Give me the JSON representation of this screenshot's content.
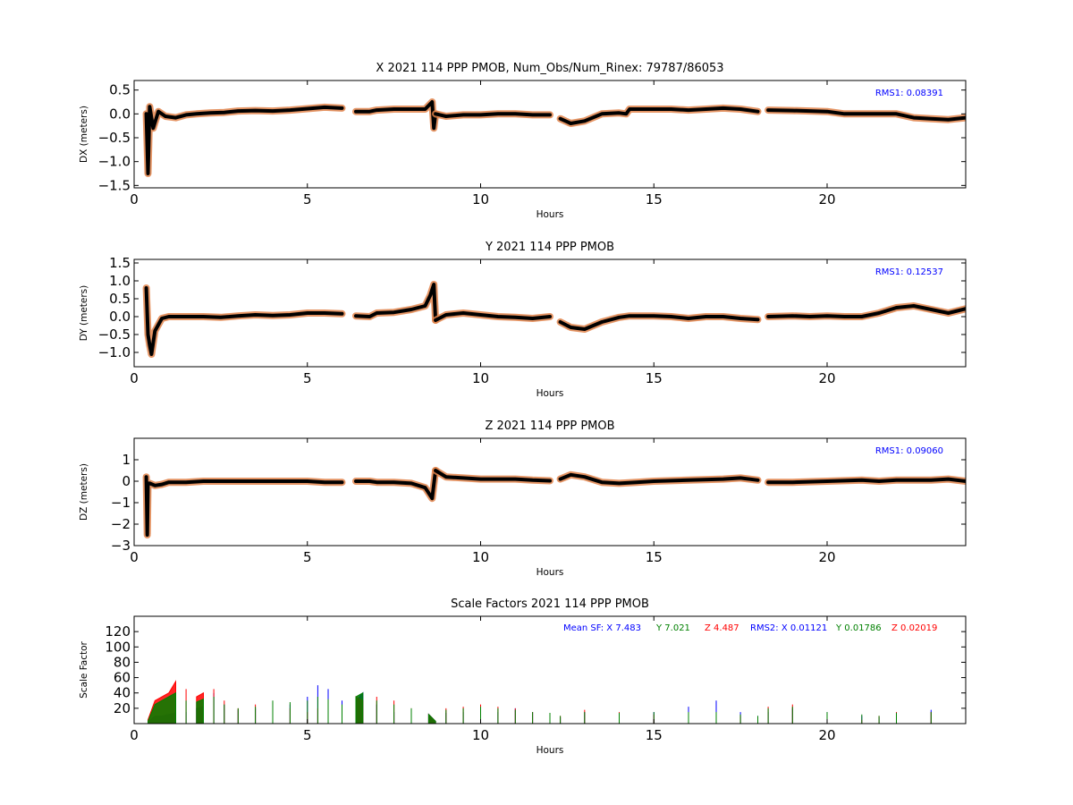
{
  "colors": {
    "data": "#000000",
    "band": "#e0824a",
    "rms": "#0000ff",
    "sfx": "#0000ff",
    "sfy": "#008000",
    "sfz": "#ff0000"
  },
  "chart_data": [
    {
      "type": "scatter",
      "title": "X 2021 114 PPP  PMOB, Num_Obs/Num_Rinex: 79787/86053",
      "xlabel": "Hours",
      "ylabel": "DX (meters)",
      "xlim": [
        0,
        24
      ],
      "ylim": [
        -1.55,
        0.7
      ],
      "xticks": [
        0,
        5,
        10,
        15,
        20
      ],
      "xtick_labels": [
        "0",
        "5",
        "10",
        "15",
        "20"
      ],
      "yticks": [
        -1.5,
        -1.0,
        -0.5,
        0.0,
        0.5
      ],
      "ytick_labels": [
        "−1.5",
        "−1.0",
        "−0.5",
        "0.0",
        "0.5"
      ],
      "annotation": "RMS1:  0.08391",
      "annotation_position": "top-right",
      "segments": [
        {
          "x": [
            0.35,
            0.4,
            0.45,
            0.55,
            0.7,
            0.9,
            1.2,
            1.5,
            1.8,
            2.2,
            2.6,
            3.0,
            3.5,
            4.0,
            4.5,
            5.0,
            5.5,
            6.0
          ],
          "y": [
            0.0,
            -1.25,
            0.15,
            -0.3,
            0.05,
            -0.05,
            -0.08,
            -0.02,
            0.0,
            0.02,
            0.03,
            0.06,
            0.07,
            0.06,
            0.08,
            0.11,
            0.14,
            0.12
          ]
        },
        {
          "x": [
            6.4,
            6.8,
            7.0,
            7.5,
            8.0,
            8.4,
            8.6,
            8.65,
            8.7
          ],
          "y": [
            0.05,
            0.05,
            0.08,
            0.1,
            0.1,
            0.1,
            0.25,
            -0.3,
            0.0
          ]
        },
        {
          "x": [
            8.7,
            9.0,
            9.5,
            10.0,
            10.5,
            11.0,
            11.5,
            12.0
          ],
          "y": [
            0.0,
            -0.05,
            -0.02,
            -0.02,
            0.0,
            0.0,
            -0.02,
            -0.02
          ]
        },
        {
          "x": [
            12.3,
            12.6,
            13.0,
            13.5,
            14.0,
            14.2,
            14.3,
            15.0,
            15.5,
            16.0,
            16.5,
            17.0,
            17.5,
            18.0
          ],
          "y": [
            -0.1,
            -0.2,
            -0.15,
            0.0,
            0.02,
            0.0,
            0.1,
            0.1,
            0.1,
            0.08,
            0.1,
            0.12,
            0.1,
            0.05
          ]
        },
        {
          "x": [
            18.3,
            19.0,
            19.5,
            20.0,
            20.5,
            21.0,
            21.5,
            22.0,
            22.5,
            23.0,
            23.5,
            24.0
          ],
          "y": [
            0.08,
            0.07,
            0.06,
            0.05,
            0.0,
            0.0,
            0.0,
            0.0,
            -0.08,
            -0.1,
            -0.12,
            -0.08
          ]
        }
      ]
    },
    {
      "type": "scatter",
      "title": "Y 2021 114 PPP  PMOB",
      "xlabel": "Hours",
      "ylabel": "DY (meters)",
      "xlim": [
        0,
        24
      ],
      "ylim": [
        -1.4,
        1.6
      ],
      "xticks": [
        0,
        5,
        10,
        15,
        20
      ],
      "xtick_labels": [
        "0",
        "5",
        "10",
        "15",
        "20"
      ],
      "yticks": [
        -1.0,
        -0.5,
        0.0,
        0.5,
        1.0,
        1.5
      ],
      "ytick_labels": [
        "−1.0",
        "−0.5",
        "0.0",
        "0.5",
        "1.0",
        "1.5"
      ],
      "annotation": "RMS1:  0.12537",
      "annotation_position": "top-right",
      "segments": [
        {
          "x": [
            0.35,
            0.4,
            0.45,
            0.5,
            0.6,
            0.8,
            1.0,
            1.5,
            2.0,
            2.5,
            3.0,
            3.5,
            4.0,
            4.5,
            5.0,
            5.5,
            6.0
          ],
          "y": [
            0.8,
            -0.5,
            -0.8,
            -1.05,
            -0.4,
            -0.05,
            0.0,
            0.0,
            0.0,
            -0.02,
            0.02,
            0.05,
            0.03,
            0.05,
            0.1,
            0.1,
            0.08
          ]
        },
        {
          "x": [
            6.4,
            6.8,
            7.0,
            7.5,
            8.0,
            8.4,
            8.55,
            8.65,
            8.7
          ],
          "y": [
            0.02,
            0.0,
            0.1,
            0.12,
            0.2,
            0.3,
            0.6,
            0.9,
            -0.1
          ]
        },
        {
          "x": [
            8.7,
            9.0,
            9.5,
            10.0,
            10.5,
            11.0,
            11.5,
            12.0
          ],
          "y": [
            -0.1,
            0.05,
            0.1,
            0.05,
            0.0,
            -0.02,
            -0.05,
            0.0
          ]
        },
        {
          "x": [
            12.3,
            12.6,
            13.0,
            13.5,
            14.0,
            14.3,
            15.0,
            15.5,
            16.0,
            16.5,
            17.0,
            17.5,
            18.0
          ],
          "y": [
            -0.15,
            -0.3,
            -0.35,
            -0.15,
            -0.02,
            0.02,
            0.02,
            0.0,
            -0.05,
            0.0,
            0.0,
            -0.05,
            -0.08
          ]
        },
        {
          "x": [
            18.3,
            19.0,
            19.5,
            20.0,
            20.5,
            21.0,
            21.5,
            22.0,
            22.5,
            23.0,
            23.5,
            24.0
          ],
          "y": [
            0.0,
            0.02,
            0.0,
            0.02,
            0.0,
            0.0,
            0.1,
            0.25,
            0.3,
            0.2,
            0.1,
            0.22
          ]
        }
      ]
    },
    {
      "type": "scatter",
      "title": "Z 2021 114 PPP  PMOB",
      "xlabel": "Hours",
      "ylabel": "DZ (meters)",
      "xlim": [
        0,
        24
      ],
      "ylim": [
        -3,
        2
      ],
      "xticks": [
        0,
        5,
        10,
        15,
        20
      ],
      "xtick_labels": [
        "0",
        "5",
        "10",
        "15",
        "20"
      ],
      "yticks": [
        -3,
        -2,
        -1,
        0,
        1
      ],
      "ytick_labels": [
        "−3",
        "−2",
        "−1",
        "0",
        "1"
      ],
      "annotation": "RMS1:  0.09060",
      "annotation_position": "top-right",
      "segments": [
        {
          "x": [
            0.35,
            0.38,
            0.4,
            0.45,
            0.6,
            0.8,
            1.0,
            1.5,
            2.0,
            3.0,
            4.0,
            5.0,
            5.5,
            6.0
          ],
          "y": [
            0.2,
            -2.5,
            -0.1,
            -0.1,
            -0.2,
            -0.15,
            -0.05,
            -0.05,
            0.0,
            0.0,
            0.0,
            0.0,
            -0.05,
            -0.05
          ]
        },
        {
          "x": [
            6.4,
            6.8,
            7.0,
            7.5,
            8.0,
            8.4,
            8.6,
            8.7
          ],
          "y": [
            0.0,
            0.0,
            -0.05,
            -0.05,
            -0.1,
            -0.3,
            -0.8,
            0.5
          ]
        },
        {
          "x": [
            8.7,
            9.0,
            9.5,
            10.0,
            10.5,
            11.0,
            11.5,
            12.0
          ],
          "y": [
            0.5,
            0.2,
            0.15,
            0.1,
            0.1,
            0.1,
            0.05,
            0.02
          ]
        },
        {
          "x": [
            12.3,
            12.6,
            13.0,
            13.5,
            14.0,
            14.5,
            15.0,
            16.0,
            17.0,
            17.5,
            18.0
          ],
          "y": [
            0.1,
            0.3,
            0.2,
            -0.05,
            -0.1,
            -0.05,
            0.0,
            0.05,
            0.1,
            0.15,
            0.05
          ]
        },
        {
          "x": [
            18.3,
            19.0,
            20.0,
            21.0,
            21.5,
            22.0,
            23.0,
            23.5,
            24.0
          ],
          "y": [
            -0.05,
            -0.05,
            0.0,
            0.05,
            0.0,
            0.05,
            0.05,
            0.1,
            0.0
          ]
        }
      ]
    },
    {
      "type": "scatter",
      "title": "Scale Factors 2021 114 PPP  PMOB",
      "xlabel": "Hours",
      "ylabel": "Scale Factor",
      "xlim": [
        0,
        24
      ],
      "ylim": [
        0,
        140
      ],
      "xticks": [
        0,
        5,
        10,
        15,
        20
      ],
      "xtick_labels": [
        "0",
        "5",
        "10",
        "15",
        "20"
      ],
      "yticks": [
        20,
        40,
        60,
        80,
        100,
        120
      ],
      "ytick_labels": [
        "20",
        "40",
        "60",
        "80",
        "100",
        "120"
      ],
      "annotation_items": [
        {
          "text": "Mean SF: X   7.483",
          "color_key": "sfx"
        },
        {
          "text": "Y   7.021",
          "color_key": "sfy"
        },
        {
          "text": "Z   4.487",
          "color_key": "sfz"
        },
        {
          "text": "RMS2: X  0.01121",
          "color_key": "sfx"
        },
        {
          "text": "Y  0.01786",
          "color_key": "sfy"
        },
        {
          "text": "Z  0.02019",
          "color_key": "sfz"
        }
      ],
      "annotation_position": "top-right",
      "series": [
        {
          "color_key": "sfx",
          "x": [
            0.4,
            0.6,
            0.8,
            1.0,
            1.2,
            1.5,
            1.8,
            2.0,
            2.3,
            2.6,
            3.0,
            3.5,
            4.0,
            4.5,
            5.0,
            5.3,
            5.6,
            6.0,
            6.4,
            6.6,
            7.0,
            7.5,
            8.0,
            8.5,
            8.7,
            9.0,
            9.5,
            10.0,
            10.5,
            11.0,
            11.5,
            12.0,
            12.3,
            13.0,
            14.0,
            15.0,
            16.0,
            16.8,
            17.5,
            18.0,
            18.3,
            19.0,
            20.0,
            21.0,
            21.5,
            22.0,
            23.0,
            24.0
          ],
          "y": [
            2,
            10,
            10,
            12,
            14,
            15,
            20,
            22,
            40,
            25,
            18,
            20,
            22,
            25,
            35,
            50,
            45,
            30,
            30,
            40,
            25,
            15,
            15,
            12,
            3,
            14,
            15,
            18,
            15,
            20,
            15,
            12,
            8,
            15,
            12,
            15,
            22,
            30,
            15,
            10,
            15,
            20,
            15,
            10,
            8,
            15,
            18,
            18
          ]
        },
        {
          "color_key": "sfz",
          "x": [
            0.4,
            0.6,
            0.8,
            1.0,
            1.2,
            1.5,
            1.8,
            2.0,
            2.3,
            2.6,
            3.0,
            3.5,
            4.0,
            4.5,
            5.0,
            5.3,
            5.6,
            6.0,
            6.4,
            6.6,
            7.0,
            7.5,
            8.0,
            8.5,
            8.7,
            9.0,
            9.5,
            10.0,
            10.5,
            11.0,
            11.5,
            12.0,
            12.3,
            13.0,
            14.0,
            15.0,
            16.0,
            16.8,
            17.5,
            18.0,
            18.3,
            19.0,
            20.0,
            21.0,
            21.5,
            22.0,
            23.0,
            24.0
          ],
          "y": [
            5,
            30,
            35,
            40,
            55,
            45,
            35,
            40,
            45,
            30,
            20,
            25,
            22,
            20,
            15,
            20,
            15,
            12,
            35,
            30,
            35,
            30,
            20,
            12,
            3,
            20,
            22,
            25,
            22,
            20,
            15,
            12,
            10,
            18,
            15,
            12,
            12,
            12,
            10,
            8,
            22,
            25,
            12,
            5,
            10,
            15,
            15,
            12
          ]
        },
        {
          "color_key": "sfy",
          "x": [
            0.4,
            0.6,
            0.8,
            1.0,
            1.2,
            1.5,
            1.8,
            2.0,
            2.3,
            2.6,
            3.0,
            3.5,
            4.0,
            4.5,
            5.0,
            5.3,
            5.6,
            6.0,
            6.4,
            6.6,
            7.0,
            7.5,
            8.0,
            8.5,
            8.7,
            9.0,
            9.5,
            10.0,
            10.5,
            11.0,
            11.5,
            12.0,
            12.3,
            13.0,
            14.0,
            15.0,
            16.0,
            16.8,
            17.5,
            18.0,
            18.3,
            19.0,
            20.0,
            21.0,
            21.5,
            22.0,
            23.0,
            24.0
          ],
          "y": [
            3,
            25,
            30,
            35,
            40,
            30,
            28,
            32,
            35,
            25,
            20,
            22,
            30,
            28,
            30,
            35,
            32,
            25,
            35,
            40,
            30,
            25,
            20,
            12,
            3,
            18,
            20,
            22,
            20,
            18,
            15,
            14,
            10,
            15,
            14,
            15,
            15,
            15,
            12,
            10,
            20,
            22,
            15,
            12,
            10,
            14,
            15,
            15
          ]
        }
      ]
    }
  ]
}
